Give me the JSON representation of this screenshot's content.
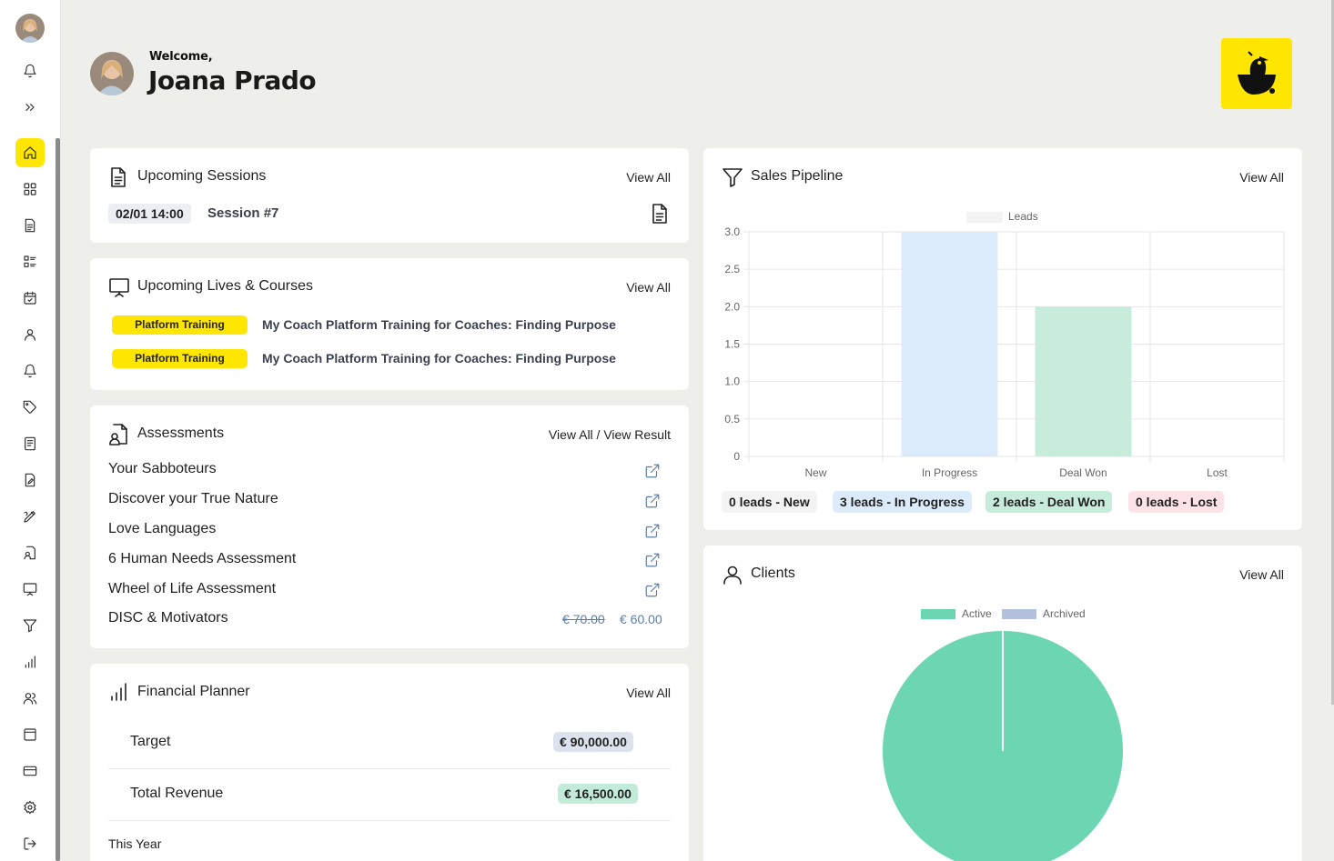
{
  "header": {
    "welcome": "Welcome,",
    "user_name": "Joana Prado"
  },
  "sidebar": {
    "items": [
      {
        "icon": "home-icon",
        "active": true
      },
      {
        "icon": "dashboard-grid-icon"
      },
      {
        "icon": "document-icon"
      },
      {
        "icon": "list-icon"
      },
      {
        "icon": "calendar-icon"
      },
      {
        "icon": "user-icon"
      },
      {
        "icon": "bell-icon"
      },
      {
        "icon": "tag-icon"
      },
      {
        "icon": "notes-icon"
      },
      {
        "icon": "file-edit-icon"
      },
      {
        "icon": "pen-icon"
      },
      {
        "icon": "assessment-icon"
      },
      {
        "icon": "presentation-icon"
      },
      {
        "icon": "filter-icon"
      },
      {
        "icon": "bar-chart-icon"
      },
      {
        "icon": "users-icon"
      },
      {
        "icon": "browser-icon"
      },
      {
        "icon": "credit-card-icon"
      },
      {
        "icon": "settings-icon"
      },
      {
        "icon": "logout-icon"
      }
    ]
  },
  "sessions": {
    "title": "Upcoming Sessions",
    "view_all": "View All",
    "items": [
      {
        "date": "02/01 14:00",
        "name": "Session #7"
      }
    ]
  },
  "lives": {
    "title": "Upcoming Lives & Courses",
    "view_all": "View All",
    "items": [
      {
        "tag": "Platform Training",
        "title": "My Coach Platform Training for Coaches: Finding Purpose"
      },
      {
        "tag": "Platform Training",
        "title": "My Coach Platform Training for Coaches: Finding Purpose"
      }
    ]
  },
  "assessments": {
    "title": "Assessments",
    "view_all": "View All / View Result",
    "items": [
      "Your Sabboteurs",
      "Discover your True Nature",
      "Love Languages",
      "6 Human Needs Assessment",
      "Wheel of Life Assessment",
      "DISC & Motivators"
    ],
    "disc_price_old": "€ 70.00",
    "disc_price_new": "€ 60.00"
  },
  "financial": {
    "title": "Financial Planner",
    "view_all": "View All",
    "target_label": "Target",
    "target_value": "€ 90,000.00",
    "revenue_label": "Total Revenue",
    "revenue_value": "€ 16,500.00",
    "period": "This Year"
  },
  "pipeline": {
    "title": "Sales Pipeline",
    "view_all": "View All",
    "badges": [
      {
        "text": "0 leads - New",
        "color": "#f3f3f3"
      },
      {
        "text": "3 leads - In Progress",
        "color": "#dcebfb"
      },
      {
        "text": "2 leads - Deal Won",
        "color": "#c7ecdc"
      },
      {
        "text": "0 leads - Lost",
        "color": "#fde3e8"
      }
    ]
  },
  "clients": {
    "title": "Clients",
    "view_all": "View All"
  },
  "chart_data": [
    {
      "type": "bar",
      "title": "",
      "legend": [
        "Leads"
      ],
      "categories": [
        "New",
        "In Progress",
        "Deal Won",
        "Lost"
      ],
      "values": [
        0,
        3,
        2,
        0
      ],
      "colors": [
        "#f3f3f3",
        "#dcebfb",
        "#c7ecdc",
        "#fde3e8"
      ],
      "ylim": [
        0,
        3.0
      ],
      "yticks": [
        "3.0",
        "2.5",
        "2.0",
        "1.5",
        "1.0",
        "0.5",
        "0"
      ],
      "grid": true,
      "legend_position": "top"
    },
    {
      "type": "pie",
      "title": "",
      "labels": [
        "Active",
        "Archived"
      ],
      "values": [
        1,
        0
      ],
      "colors": [
        "#6cd5b2",
        "#b3c0dc"
      ],
      "legend_position": "top"
    }
  ]
}
